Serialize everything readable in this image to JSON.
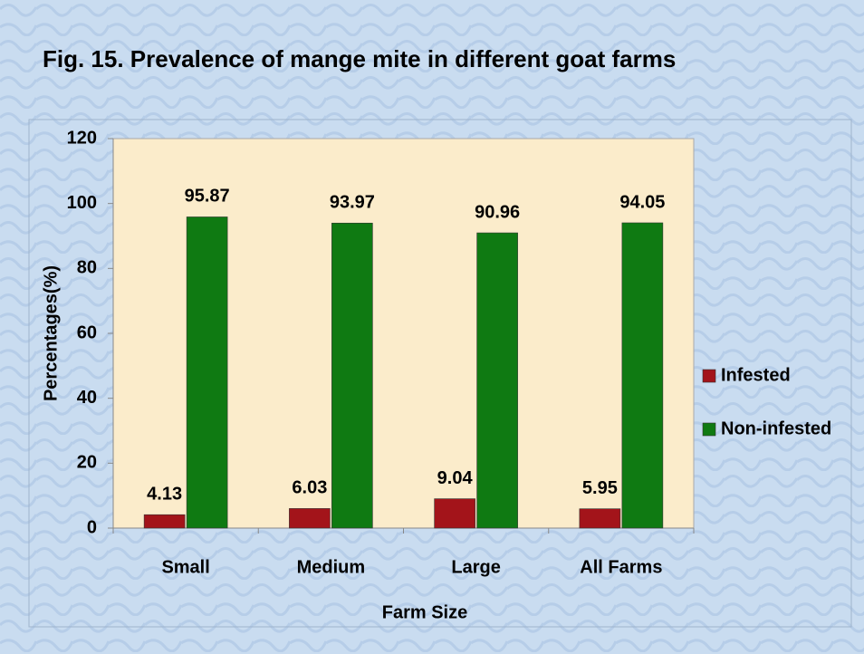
{
  "chart_data": {
    "type": "bar",
    "title": "Fig. 15. Prevalence of mange mite in different goat farms",
    "x_label": "Farm Size",
    "y_label": "Percentages(%)",
    "categories": [
      "Small",
      "Medium",
      "Large",
      "All Farms"
    ],
    "series": [
      {
        "name": "Infested",
        "color": "#a3141a",
        "values": [
          4.13,
          6.03,
          9.04,
          5.95
        ]
      },
      {
        "name": "Non-infested",
        "color": "#0f7a12",
        "values": [
          95.87,
          93.97,
          90.96,
          94.05
        ]
      }
    ],
    "ylim": [
      0,
      120
    ],
    "yticks": [
      0,
      20,
      40,
      60,
      80,
      100,
      120
    ],
    "legend": "right",
    "grid": false
  }
}
